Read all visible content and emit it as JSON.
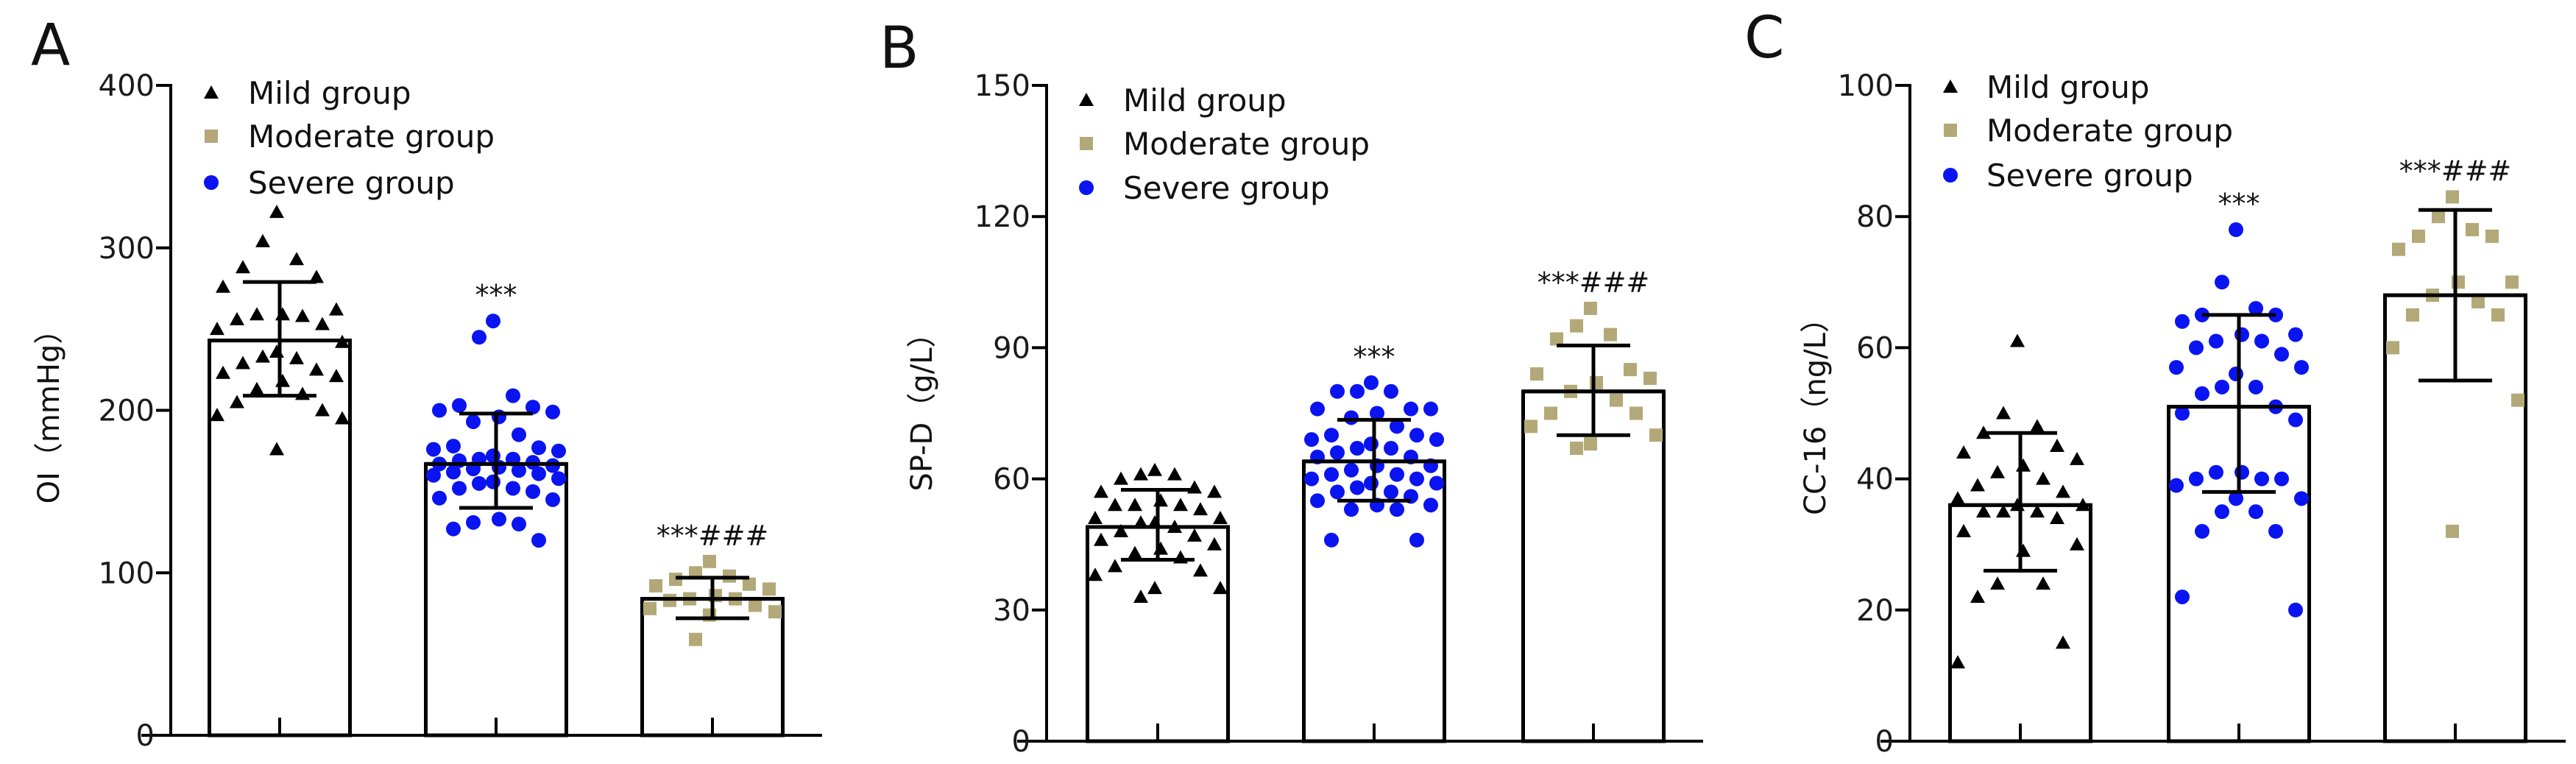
{
  "colors": {
    "mild": "#000000",
    "moderate": "#b3a878",
    "severe": "#0a14f0",
    "axis": "#000000"
  },
  "legend": [
    {
      "label": "Mild group",
      "marker": "triangle",
      "color": "#000000"
    },
    {
      "label": "Moderate group",
      "marker": "square",
      "color": "#b3a878"
    },
    {
      "label": "Severe group",
      "marker": "circle",
      "color": "#0a14f0"
    }
  ],
  "chart_data": [
    {
      "panel": "A",
      "type": "bar",
      "ylabel": "OI（mmHg）",
      "ylim": [
        0,
        400
      ],
      "yticks": [
        0,
        100,
        200,
        300,
        400
      ],
      "grid": false,
      "legend_position": "top-left",
      "bars": [
        {
          "marker": "triangle",
          "color": "#000000",
          "mean": 243,
          "sd_low": 209,
          "sd_high": 279,
          "annotation": "",
          "points": [
            322,
            304,
            293,
            288,
            282,
            276,
            262,
            259,
            259,
            258,
            256,
            253,
            250,
            242,
            236,
            233,
            232,
            229,
            225,
            223,
            221,
            218,
            213,
            210,
            205,
            200,
            197,
            195,
            176
          ]
        },
        {
          "marker": "circle",
          "color": "#0a14f0",
          "mean": 167,
          "sd_low": 140,
          "sd_high": 198,
          "annotation": "***",
          "points": [
            255,
            245,
            209,
            203,
            202,
            200,
            199,
            196,
            193,
            185,
            178,
            177,
            176,
            175,
            172,
            170,
            170,
            169,
            168,
            167,
            166,
            165,
            164,
            163,
            162,
            161,
            160,
            158,
            156,
            155,
            152,
            152,
            150,
            146,
            145,
            133,
            131,
            130,
            127,
            120
          ]
        },
        {
          "marker": "square",
          "color": "#b3a878",
          "mean": 84,
          "sd_low": 72,
          "sd_high": 97,
          "annotation": "***###",
          "points": [
            107,
            100,
            98,
            96,
            93,
            92,
            90,
            86,
            84,
            84,
            83,
            80,
            78,
            76,
            74,
            59
          ]
        }
      ]
    },
    {
      "panel": "B",
      "type": "bar",
      "ylabel": "SP-D（g/L）",
      "ylim": [
        0,
        150
      ],
      "yticks": [
        0,
        30,
        60,
        90,
        120,
        150
      ],
      "grid": false,
      "legend_position": "top-left",
      "bars": [
        {
          "marker": "triangle",
          "color": "#000000",
          "mean": 49,
          "sd_low": 41.5,
          "sd_high": 57.5,
          "annotation": "",
          "points": [
            62,
            61,
            61,
            60,
            58,
            57,
            57,
            55,
            54,
            54,
            54,
            53,
            51,
            51,
            50,
            50,
            49,
            48,
            47,
            46,
            45,
            44,
            43,
            42,
            40,
            39,
            38,
            35,
            35,
            33
          ]
        },
        {
          "marker": "circle",
          "color": "#0a14f0",
          "mean": 64,
          "sd_low": 55,
          "sd_high": 73.5,
          "annotation": "***",
          "points": [
            82,
            80,
            80,
            80,
            76,
            76,
            76,
            75,
            74,
            72,
            70,
            70,
            69,
            69,
            68,
            67,
            67,
            66,
            65,
            65,
            63,
            63,
            62,
            61,
            61,
            60,
            60,
            59,
            59,
            58,
            57,
            57,
            56,
            55,
            54,
            54,
            53,
            53,
            46,
            46
          ]
        },
        {
          "marker": "square",
          "color": "#b3a878",
          "mean": 80,
          "sd_low": 70,
          "sd_high": 90.5,
          "annotation": "***###",
          "points": [
            99,
            95,
            93,
            92,
            85,
            84,
            83,
            82,
            80,
            78,
            75,
            75,
            72,
            70,
            68,
            67
          ]
        }
      ]
    },
    {
      "panel": "C",
      "type": "bar",
      "ylabel": "CC-16（ng/L）",
      "ylim": [
        0,
        100
      ],
      "yticks": [
        0,
        20,
        40,
        60,
        80,
        100
      ],
      "grid": false,
      "legend_position": "top-left",
      "bars": [
        {
          "marker": "triangle",
          "color": "#000000",
          "mean": 36,
          "sd_low": 26,
          "sd_high": 47,
          "annotation": "",
          "points": [
            61,
            50,
            48,
            47,
            45,
            44,
            43,
            42,
            41,
            40,
            39,
            38,
            37,
            36,
            36,
            35,
            35,
            35,
            34,
            32,
            30,
            29,
            24,
            24,
            22,
            15,
            12
          ]
        },
        {
          "marker": "circle",
          "color": "#0a14f0",
          "mean": 51,
          "sd_low": 38,
          "sd_high": 65,
          "annotation": "***",
          "points": [
            78,
            70,
            66,
            65,
            65,
            64,
            62,
            62,
            61,
            61,
            60,
            59,
            57,
            57,
            56,
            54,
            54,
            53,
            51,
            50,
            49,
            41,
            41,
            40,
            40,
            40,
            39,
            37,
            37,
            35,
            35,
            32,
            32,
            22,
            20
          ]
        },
        {
          "marker": "square",
          "color": "#b3a878",
          "mean": 68,
          "sd_low": 55,
          "sd_high": 81,
          "annotation": "***###",
          "points": [
            83,
            80,
            78,
            77,
            77,
            75,
            70,
            70,
            68,
            67,
            65,
            65,
            60,
            52,
            32
          ]
        }
      ]
    }
  ]
}
